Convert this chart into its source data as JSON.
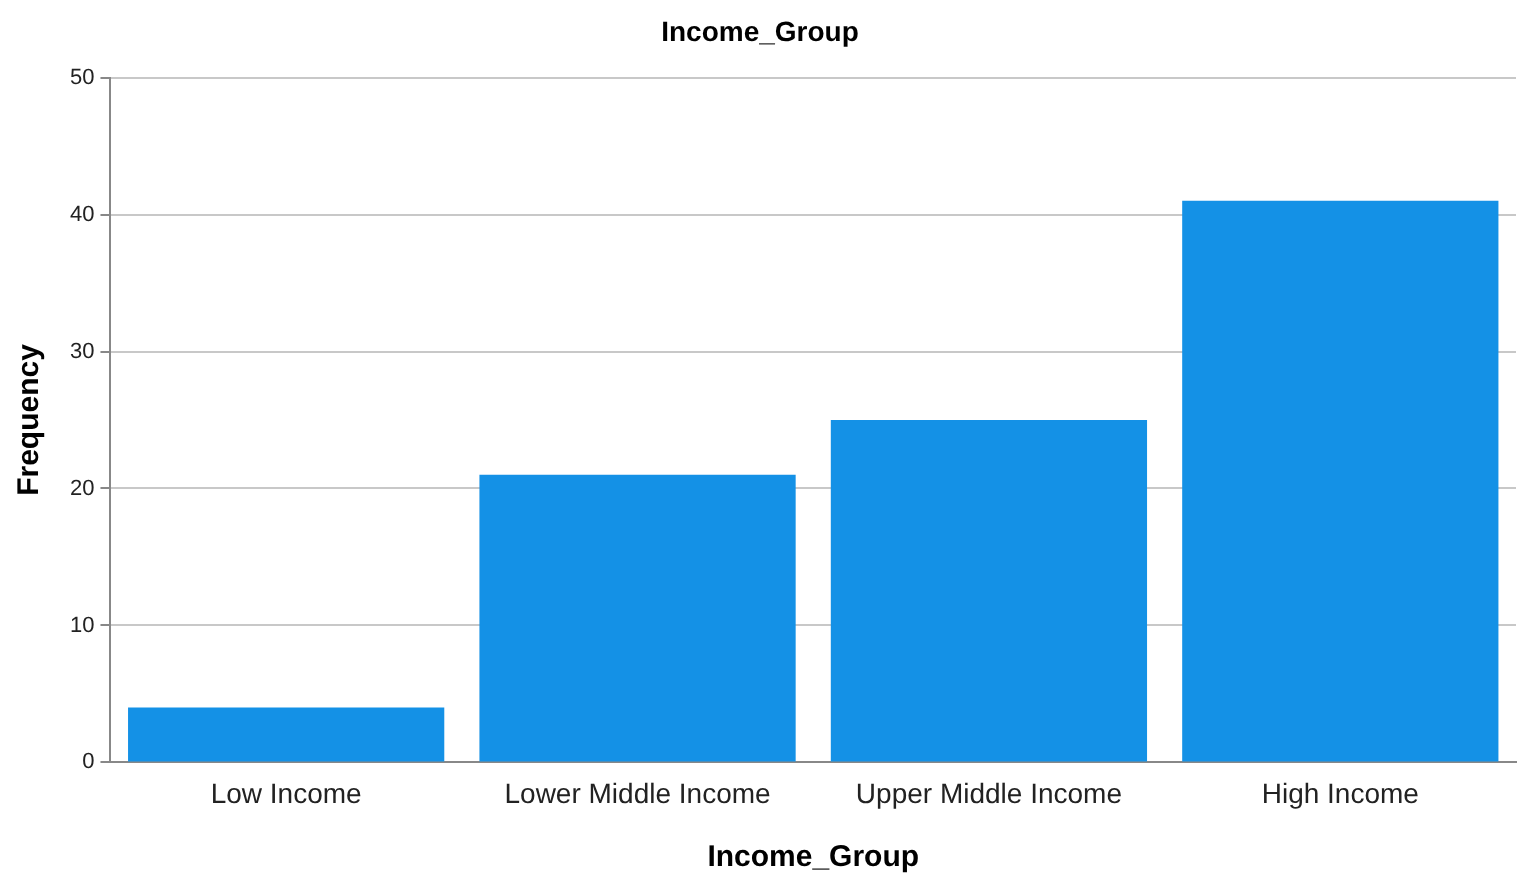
{
  "chart_data": {
    "type": "bar",
    "title": "Income_Group",
    "xlabel": "Income_Group",
    "ylabel": "Frequency",
    "categories": [
      "Low Income",
      "Lower Middle Income",
      "Upper Middle Income",
      "High Income"
    ],
    "values": [
      4,
      21,
      25,
      41
    ],
    "color": "#1491e6",
    "ylim": [
      0,
      50
    ],
    "yticks": [
      0,
      10,
      20,
      30,
      40,
      50
    ],
    "grid": "y",
    "legend": false
  }
}
